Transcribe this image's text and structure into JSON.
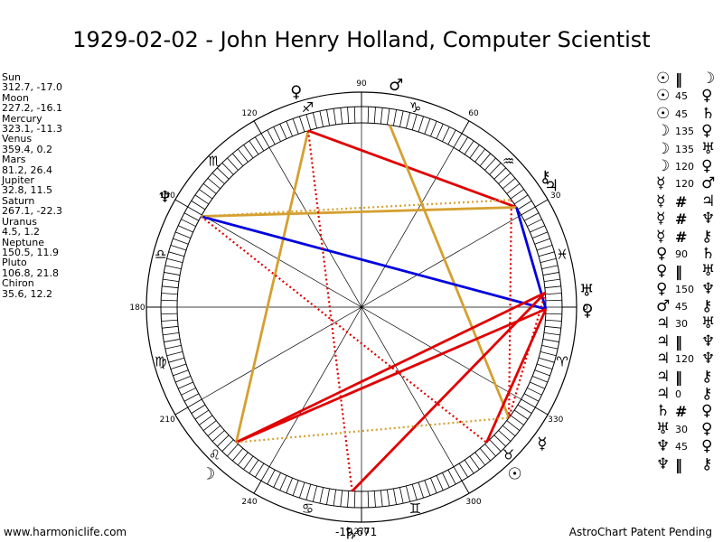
{
  "title": "1929-02-02 - John Henry Holland, Computer Scientist",
  "positions": [
    {
      "name": "Sun",
      "coords": "312.7, -17.0"
    },
    {
      "name": "Moon",
      "coords": "227.2, -16.1"
    },
    {
      "name": "Mercury",
      "coords": "323.1, -11.3"
    },
    {
      "name": "Venus",
      "coords": "359.4, 0.2"
    },
    {
      "name": "Mars",
      "coords": "81.2, 26.4"
    },
    {
      "name": "Jupiter",
      "coords": "32.8, 11.5"
    },
    {
      "name": "Saturn",
      "coords": "267.1, -22.3"
    },
    {
      "name": "Uranus",
      "coords": "4.5, 1.2"
    },
    {
      "name": "Neptune",
      "coords": "150.5, 11.9"
    },
    {
      "name": "Pluto",
      "coords": "106.8, 21.8"
    },
    {
      "name": "Chiron",
      "coords": "35.6, 12.2"
    }
  ],
  "aspects": [
    {
      "p1": "☉",
      "asp": "‖",
      "p2": "☽"
    },
    {
      "p1": "☉",
      "asp": "45",
      "p2": "♀"
    },
    {
      "p1": "☉",
      "asp": "45",
      "p2": "♄"
    },
    {
      "p1": "☽",
      "asp": "135",
      "p2": "♀"
    },
    {
      "p1": "☽",
      "asp": "135",
      "p2": "♅"
    },
    {
      "p1": "☽",
      "asp": "120",
      "p2": "♀"
    },
    {
      "p1": "☿",
      "asp": "120",
      "p2": "♂"
    },
    {
      "p1": "☿",
      "asp": "#",
      "p2": "♃"
    },
    {
      "p1": "☿",
      "asp": "#",
      "p2": "♆"
    },
    {
      "p1": "☿",
      "asp": "#",
      "p2": "⚷"
    },
    {
      "p1": "♀",
      "asp": "90",
      "p2": "♄"
    },
    {
      "p1": "♀",
      "asp": "‖",
      "p2": "♅"
    },
    {
      "p1": "♀",
      "asp": "150",
      "p2": "♆"
    },
    {
      "p1": "♂",
      "asp": "45",
      "p2": "⚷"
    },
    {
      "p1": "♃",
      "asp": "30",
      "p2": "♅"
    },
    {
      "p1": "♃",
      "asp": "‖",
      "p2": "♆"
    },
    {
      "p1": "♃",
      "asp": "120",
      "p2": "♆"
    },
    {
      "p1": "♃",
      "asp": "‖",
      "p2": "⚷"
    },
    {
      "p1": "♃",
      "asp": "0",
      "p2": "⚷"
    },
    {
      "p1": "♄",
      "asp": "#",
      "p2": "♀"
    },
    {
      "p1": "♅",
      "asp": "30",
      "p2": "♀"
    },
    {
      "p1": "♆",
      "asp": "45",
      "p2": "♀"
    },
    {
      "p1": "♆",
      "asp": "‖",
      "p2": "⚷"
    }
  ],
  "wheel": {
    "degree_labels": [
      "0",
      "30",
      "60",
      "90",
      "120",
      "150",
      "180",
      "210",
      "240",
      "270",
      "300",
      "330"
    ],
    "bottom_readout": "-19,671",
    "zodiac_glyphs": [
      "♓",
      "♒",
      "♑",
      "♐",
      "♏",
      "♎",
      "♍",
      "♌",
      "♋",
      "♊",
      "♉",
      "♈"
    ],
    "planets": [
      {
        "glyph": "☉",
        "name": "sun-glyph",
        "lon": 312.7
      },
      {
        "glyph": "☽",
        "name": "moon-glyph",
        "lon": 227.2
      },
      {
        "glyph": "☿",
        "name": "mercury-glyph",
        "lon": 323.1
      },
      {
        "glyph": "♀",
        "name": "venus-glyph",
        "lon": 359.4
      },
      {
        "glyph": "♂",
        "name": "mars-glyph",
        "lon": 81.2
      },
      {
        "glyph": "♃",
        "name": "jupiter-glyph",
        "lon": 32.8
      },
      {
        "glyph": "♄",
        "name": "saturn-glyph",
        "lon": 267.1
      },
      {
        "glyph": "♅",
        "name": "uranus-glyph",
        "lon": 4.5
      },
      {
        "glyph": "♆",
        "name": "neptune-glyph",
        "lon": 150.5
      },
      {
        "glyph": "♀",
        "name": "pluto-glyph",
        "lon": 106.8
      },
      {
        "glyph": "⚷",
        "name": "chiron-glyph",
        "lon": 35.6
      }
    ],
    "colors": {
      "square": "#e00000",
      "trine": "#d4a030",
      "opposition": "#0000e0",
      "spoke": "#000000"
    }
  },
  "footer": {
    "left": "www.harmoniclife.com",
    "right": "AstroChart Patent Pending"
  }
}
